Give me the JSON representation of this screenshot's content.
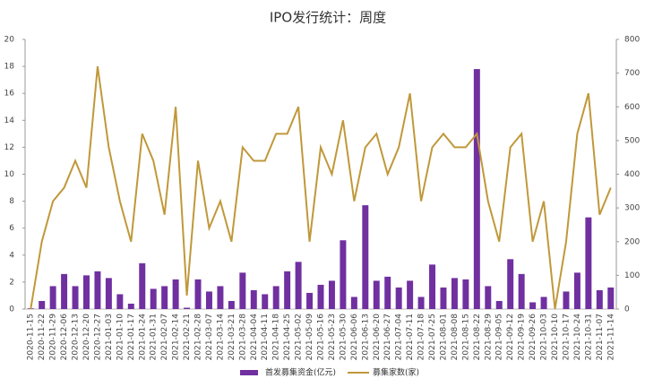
{
  "chart_data": {
    "type": "bar",
    "title": "IPO发行统计：周度",
    "categories": [
      "2020-11-15",
      "2020-11-22",
      "2020-11-29",
      "2020-12-06",
      "2020-12-13",
      "2020-12-20",
      "2020-12-27",
      "2021-01-03",
      "2021-01-10",
      "2021-01-17",
      "2021-01-24",
      "2021-01-31",
      "2021-02-07",
      "2021-02-14",
      "2021-02-21",
      "2021-02-28",
      "2021-03-07",
      "2021-03-14",
      "2021-03-21",
      "2021-03-28",
      "2021-04-04",
      "2021-04-11",
      "2021-04-18",
      "2021-04-25",
      "2021-05-02",
      "2021-05-09",
      "2021-05-16",
      "2021-05-23",
      "2021-05-30",
      "2021-06-06",
      "2021-06-13",
      "2021-06-20",
      "2021-06-27",
      "2021-07-04",
      "2021-07-11",
      "2021-07-18",
      "2021-07-25",
      "2021-08-01",
      "2021-08-08",
      "2021-08-15",
      "2021-08-22",
      "2021-08-29",
      "2021-09-05",
      "2021-09-12",
      "2021-09-19",
      "2021-09-26",
      "2021-10-03",
      "2021-10-10",
      "2021-10-17",
      "2021-10-24",
      "2021-10-31",
      "2021-11-07",
      "2021-11-14"
    ],
    "series": [
      {
        "name": "首发募集资金(亿元)",
        "type": "bar",
        "color": "#7030a0",
        "values": [
          0.05,
          0.6,
          1.7,
          2.6,
          1.7,
          2.5,
          2.8,
          2.3,
          1.1,
          0.4,
          3.4,
          1.5,
          1.7,
          2.2,
          0.1,
          2.2,
          1.3,
          1.7,
          0.6,
          2.7,
          1.4,
          1.1,
          1.7,
          2.8,
          3.5,
          1.2,
          1.8,
          2.1,
          5.1,
          0.9,
          7.7,
          2.1,
          2.4,
          1.6,
          2.1,
          0.9,
          3.3,
          1.6,
          2.3,
          2.2,
          17.8,
          1.7,
          0.6,
          3.7,
          2.6,
          0.5,
          0.9,
          0,
          1.3,
          2.7,
          6.8,
          1.4,
          1.6
        ]
      },
      {
        "name": "募集家数(家)",
        "type": "line",
        "axis": "y2",
        "color": "#c0983a",
        "values": [
          0,
          200,
          320,
          360,
          440,
          360,
          720,
          480,
          320,
          200,
          520,
          440,
          280,
          600,
          40,
          440,
          240,
          320,
          200,
          480,
          440,
          440,
          520,
          520,
          600,
          200,
          480,
          400,
          560,
          320,
          480,
          520,
          400,
          480,
          640,
          320,
          480,
          520,
          480,
          480,
          520,
          320,
          200,
          480,
          520,
          200,
          320,
          0,
          200,
          520,
          640,
          280,
          360
        ]
      }
    ],
    "ylim": [
      0,
      20
    ],
    "yticks": [
      0,
      2,
      4,
      6,
      8,
      10,
      12,
      14,
      16,
      18,
      20
    ],
    "y2lim": [
      0,
      800
    ],
    "y2ticks": [
      0,
      100,
      200,
      300,
      400,
      500,
      600,
      700,
      800
    ],
    "grid": false,
    "legend": "bottom"
  }
}
